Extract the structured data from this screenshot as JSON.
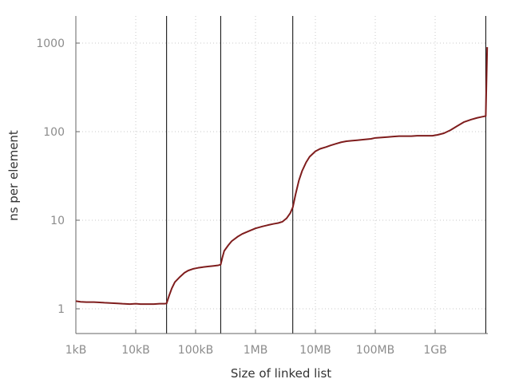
{
  "chart_data": {
    "type": "line",
    "title": "",
    "xlabel": "Size of linked list",
    "ylabel": "ns per element",
    "x_scale": "log",
    "y_scale": "log",
    "xlim": [
      "1kB",
      "~8GB"
    ],
    "ylim": [
      0.5,
      2000
    ],
    "grid": "dotted",
    "legend": "none",
    "line_color": "#7f1d1d",
    "x_ticks": [
      {
        "label": "1kB",
        "bytes": 1000
      },
      {
        "label": "10kB",
        "bytes": 10000
      },
      {
        "label": "100kB",
        "bytes": 100000
      },
      {
        "label": "1MB",
        "bytes": 1000000
      },
      {
        "label": "10MB",
        "bytes": 10000000
      },
      {
        "label": "100MB",
        "bytes": 100000000
      },
      {
        "label": "1GB",
        "bytes": 1000000000
      }
    ],
    "y_ticks": [
      {
        "label": "1",
        "value": 1
      },
      {
        "label": "10",
        "value": 10
      },
      {
        "label": "100",
        "value": 100
      },
      {
        "label": "1000",
        "value": 1000
      }
    ],
    "vertical_markers_bytes": [
      32768,
      262144,
      4194304,
      7000000000
    ],
    "series": [
      {
        "x": [
          1000,
          1200,
          1500,
          2000,
          2500,
          3000,
          4000,
          5000,
          6000,
          8000,
          10000,
          12000,
          15000,
          20000,
          25000,
          30000,
          32768,
          36000,
          40000,
          45000,
          55000,
          65000,
          75000,
          90000,
          110000,
          130000,
          160000,
          200000,
          240000,
          262144,
          280000,
          300000,
          350000,
          400000,
          500000,
          600000,
          800000,
          1000000,
          1300000,
          1600000,
          2000000,
          2400000,
          2800000,
          3300000,
          3800000,
          4200000,
          4700000,
          5300000,
          6000000,
          7000000,
          8000000,
          10000000,
          12000000,
          15000000,
          18000000,
          22000000,
          27000000,
          33000000,
          40000000,
          50000000,
          60000000,
          70000000,
          85000000,
          100000000,
          130000000,
          160000000,
          200000000,
          250000000,
          300000000,
          350000000,
          400000000,
          500000000,
          600000000,
          700000000,
          900000000,
          1100000000,
          1400000000,
          1800000000,
          2300000000,
          3000000000,
          4000000000,
          5000000000,
          6000000000,
          7000000000,
          7400000000
        ],
        "y": [
          1.22,
          1.2,
          1.19,
          1.19,
          1.18,
          1.17,
          1.16,
          1.15,
          1.14,
          1.13,
          1.14,
          1.13,
          1.13,
          1.13,
          1.14,
          1.14,
          1.15,
          1.4,
          1.7,
          2.0,
          2.3,
          2.55,
          2.7,
          2.82,
          2.9,
          2.95,
          3.0,
          3.05,
          3.1,
          3.15,
          3.8,
          4.5,
          5.2,
          5.8,
          6.5,
          7.0,
          7.6,
          8.1,
          8.5,
          8.8,
          9.1,
          9.3,
          9.6,
          10.5,
          12.0,
          14.0,
          20.0,
          28.0,
          36.0,
          45.0,
          52.0,
          60.0,
          64.0,
          67.0,
          70.0,
          73.0,
          76.0,
          78.0,
          79.0,
          80.0,
          81.0,
          82.0,
          83.0,
          85.0,
          86.0,
          87.0,
          88.0,
          89.0,
          89.0,
          89.0,
          89.0,
          90.0,
          90.0,
          90.0,
          90.0,
          92.0,
          96.0,
          104.0,
          115.0,
          128.0,
          137.0,
          143.0,
          147.0,
          150.0,
          900.0
        ]
      }
    ]
  }
}
